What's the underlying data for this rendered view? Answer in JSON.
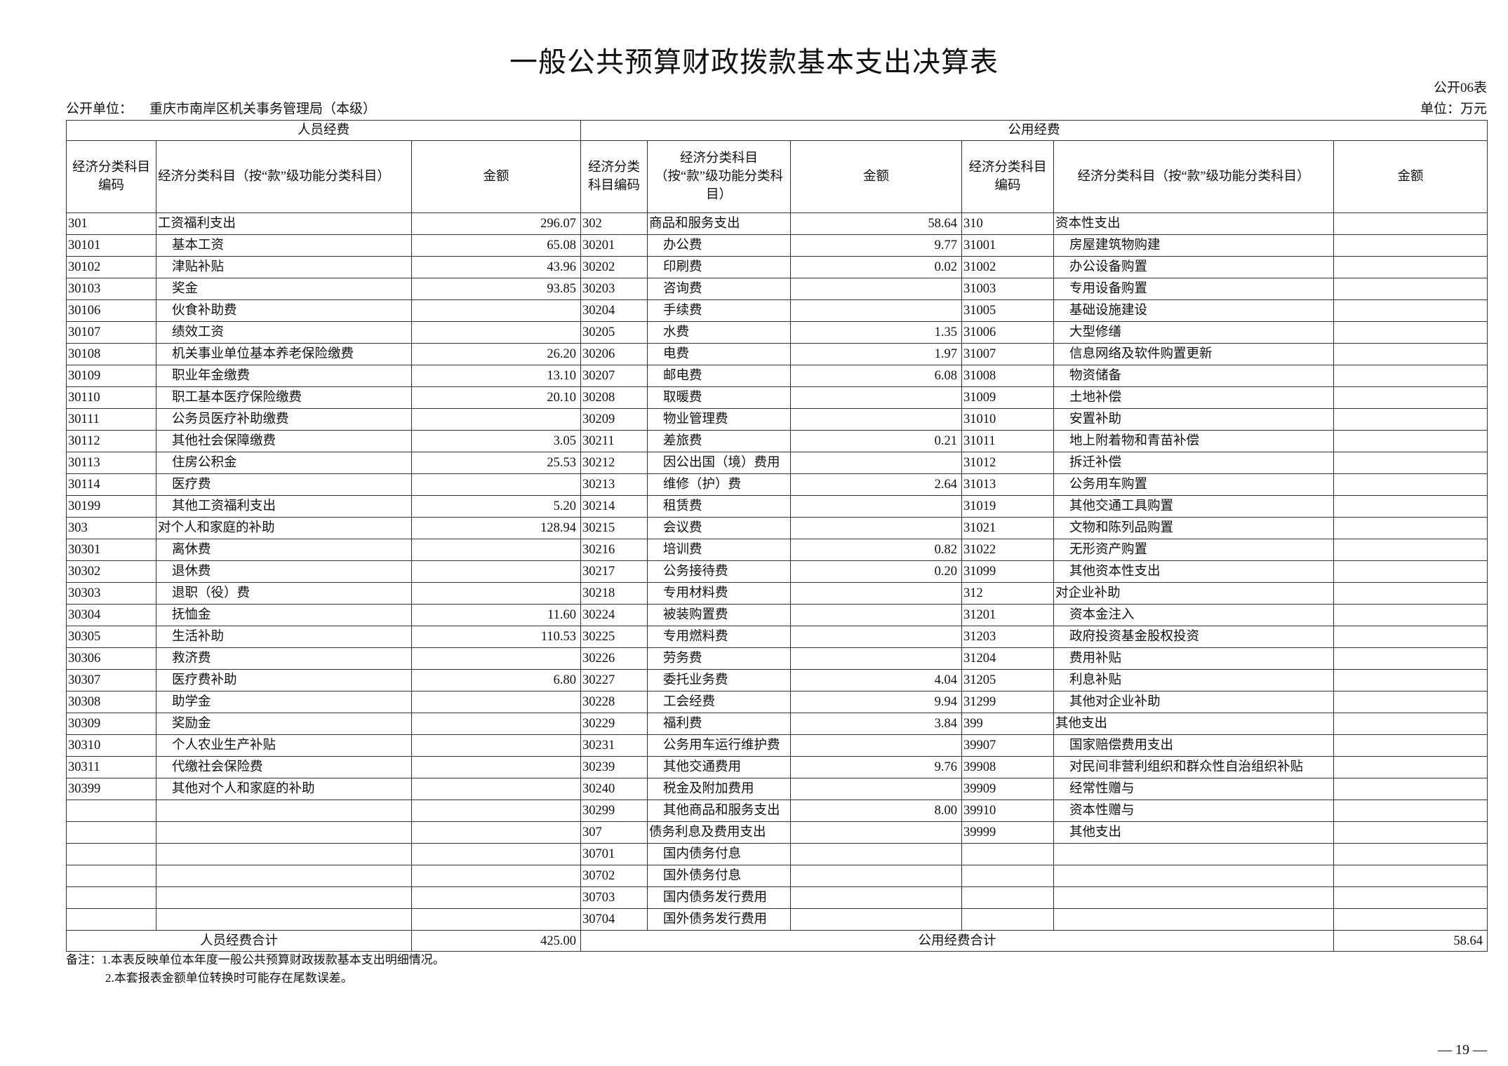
{
  "title": "一般公共预算财政拨款基本支出决算表",
  "form_no": "公开06表",
  "unit_label": "公开单位：",
  "unit_name": "重庆市南岸区机关事务管理局（本级）",
  "money_unit": "单位：万元",
  "headers": {
    "personnel": "人员经费",
    "public": "公用经费",
    "code": "经济分类科目编码",
    "code_narrow": "经济分类科目编码",
    "name": "经济分类科目（按“款”级功能分类科目）",
    "amount": "金额"
  },
  "rows": [
    [
      [
        "301",
        "工资福利支出",
        "296.07",
        0
      ],
      [
        "302",
        "商品和服务支出",
        "58.64",
        0
      ],
      [
        "310",
        "资本性支出",
        "",
        0
      ]
    ],
    [
      [
        "30101",
        "基本工资",
        "65.08",
        1
      ],
      [
        "30201",
        "办公费",
        "9.77",
        1
      ],
      [
        "31001",
        "房屋建筑物购建",
        "",
        1
      ]
    ],
    [
      [
        "30102",
        "津贴补贴",
        "43.96",
        1
      ],
      [
        "30202",
        "印刷费",
        "0.02",
        1
      ],
      [
        "31002",
        "办公设备购置",
        "",
        1
      ]
    ],
    [
      [
        "30103",
        "奖金",
        "93.85",
        1
      ],
      [
        "30203",
        "咨询费",
        "",
        1
      ],
      [
        "31003",
        "专用设备购置",
        "",
        1
      ]
    ],
    [
      [
        "30106",
        "伙食补助费",
        "",
        1
      ],
      [
        "30204",
        "手续费",
        "",
        1
      ],
      [
        "31005",
        "基础设施建设",
        "",
        1
      ]
    ],
    [
      [
        "30107",
        "绩效工资",
        "",
        1
      ],
      [
        "30205",
        "水费",
        "1.35",
        1
      ],
      [
        "31006",
        "大型修缮",
        "",
        1
      ]
    ],
    [
      [
        "30108",
        "机关事业单位基本养老保险缴费",
        "26.20",
        1
      ],
      [
        "30206",
        "电费",
        "1.97",
        1
      ],
      [
        "31007",
        "信息网络及软件购置更新",
        "",
        1
      ]
    ],
    [
      [
        "30109",
        "职业年金缴费",
        "13.10",
        1
      ],
      [
        "30207",
        "邮电费",
        "6.08",
        1
      ],
      [
        "31008",
        "物资储备",
        "",
        1
      ]
    ],
    [
      [
        "30110",
        "职工基本医疗保险缴费",
        "20.10",
        1
      ],
      [
        "30208",
        "取暖费",
        "",
        1
      ],
      [
        "31009",
        "土地补偿",
        "",
        1
      ]
    ],
    [
      [
        "30111",
        "公务员医疗补助缴费",
        "",
        1
      ],
      [
        "30209",
        "物业管理费",
        "",
        1
      ],
      [
        "31010",
        "安置补助",
        "",
        1
      ]
    ],
    [
      [
        "30112",
        "其他社会保障缴费",
        "3.05",
        1
      ],
      [
        "30211",
        "差旅费",
        "0.21",
        1
      ],
      [
        "31011",
        "地上附着物和青苗补偿",
        "",
        1
      ]
    ],
    [
      [
        "30113",
        "住房公积金",
        "25.53",
        1
      ],
      [
        "30212",
        "因公出国（境）费用",
        "",
        1
      ],
      [
        "31012",
        "拆迁补偿",
        "",
        1
      ]
    ],
    [
      [
        "30114",
        "医疗费",
        "",
        1
      ],
      [
        "30213",
        "维修（护）费",
        "2.64",
        1
      ],
      [
        "31013",
        "公务用车购置",
        "",
        1
      ]
    ],
    [
      [
        "30199",
        "其他工资福利支出",
        "5.20",
        1
      ],
      [
        "30214",
        "租赁费",
        "",
        1
      ],
      [
        "31019",
        "其他交通工具购置",
        "",
        1
      ]
    ],
    [
      [
        "303",
        "对个人和家庭的补助",
        "128.94",
        0
      ],
      [
        "30215",
        "会议费",
        "",
        1
      ],
      [
        "31021",
        "文物和陈列品购置",
        "",
        1
      ]
    ],
    [
      [
        "30301",
        "离休费",
        "",
        1
      ],
      [
        "30216",
        "培训费",
        "0.82",
        1
      ],
      [
        "31022",
        "无形资产购置",
        "",
        1
      ]
    ],
    [
      [
        "30302",
        "退休费",
        "",
        1
      ],
      [
        "30217",
        "公务接待费",
        "0.20",
        1
      ],
      [
        "31099",
        "其他资本性支出",
        "",
        1
      ]
    ],
    [
      [
        "30303",
        "退职（役）费",
        "",
        1
      ],
      [
        "30218",
        "专用材料费",
        "",
        1
      ],
      [
        "312",
        "对企业补助",
        "",
        0
      ]
    ],
    [
      [
        "30304",
        "抚恤金",
        "11.60",
        1
      ],
      [
        "30224",
        "被装购置费",
        "",
        1
      ],
      [
        "31201",
        "资本金注入",
        "",
        1
      ]
    ],
    [
      [
        "30305",
        "生活补助",
        "110.53",
        1
      ],
      [
        "30225",
        "专用燃料费",
        "",
        1
      ],
      [
        "31203",
        "政府投资基金股权投资",
        "",
        1
      ]
    ],
    [
      [
        "30306",
        "救济费",
        "",
        1
      ],
      [
        "30226",
        "劳务费",
        "",
        1
      ],
      [
        "31204",
        "费用补贴",
        "",
        1
      ]
    ],
    [
      [
        "30307",
        "医疗费补助",
        "6.80",
        1
      ],
      [
        "30227",
        "委托业务费",
        "4.04",
        1
      ],
      [
        "31205",
        "利息补贴",
        "",
        1
      ]
    ],
    [
      [
        "30308",
        "助学金",
        "",
        1
      ],
      [
        "30228",
        "工会经费",
        "9.94",
        1
      ],
      [
        "31299",
        "其他对企业补助",
        "",
        1
      ]
    ],
    [
      [
        "30309",
        "奖励金",
        "",
        1
      ],
      [
        "30229",
        "福利费",
        "3.84",
        1
      ],
      [
        "399",
        "其他支出",
        "",
        0
      ]
    ],
    [
      [
        "30310",
        "个人农业生产补贴",
        "",
        1
      ],
      [
        "30231",
        "公务用车运行维护费",
        "",
        1
      ],
      [
        "39907",
        "国家赔偿费用支出",
        "",
        1
      ]
    ],
    [
      [
        "30311",
        "代缴社会保险费",
        "",
        1
      ],
      [
        "30239",
        "其他交通费用",
        "9.76",
        1
      ],
      [
        "39908",
        "对民间非营利组织和群众性自治组织补贴",
        "",
        1
      ]
    ],
    [
      [
        "30399",
        "其他对个人和家庭的补助",
        "",
        1
      ],
      [
        "30240",
        "税金及附加费用",
        "",
        1
      ],
      [
        "39909",
        "经常性赠与",
        "",
        1
      ]
    ],
    [
      [
        "",
        "",
        "",
        0
      ],
      [
        "30299",
        "其他商品和服务支出",
        "8.00",
        1
      ],
      [
        "39910",
        "资本性赠与",
        "",
        1
      ]
    ],
    [
      [
        "",
        "",
        "",
        0
      ],
      [
        "307",
        "债务利息及费用支出",
        "",
        0
      ],
      [
        "39999",
        "其他支出",
        "",
        1
      ]
    ],
    [
      [
        "",
        "",
        "",
        0
      ],
      [
        "30701",
        "国内债务付息",
        "",
        1
      ],
      [
        "",
        "",
        "",
        0
      ]
    ],
    [
      [
        "",
        "",
        "",
        0
      ],
      [
        "30702",
        "国外债务付息",
        "",
        1
      ],
      [
        "",
        "",
        "",
        0
      ]
    ],
    [
      [
        "",
        "",
        "",
        0
      ],
      [
        "30703",
        "国内债务发行费用",
        "",
        1
      ],
      [
        "",
        "",
        "",
        0
      ]
    ],
    [
      [
        "",
        "",
        "",
        0
      ],
      [
        "30704",
        "国外债务发行费用",
        "",
        1
      ],
      [
        "",
        "",
        "",
        0
      ]
    ]
  ],
  "totals": {
    "personnel_label": "人员经费合计",
    "personnel_amount": "425.00",
    "public_label": "公用经费合计",
    "public_amount": "58.64"
  },
  "notes": [
    "备注：1.本表反映单位本年度一般公共预算财政拨款基本支出明细情况。",
    "2.本套报表金额单位转换时可能存在尾数误差。"
  ],
  "page_number": "— 19 —"
}
